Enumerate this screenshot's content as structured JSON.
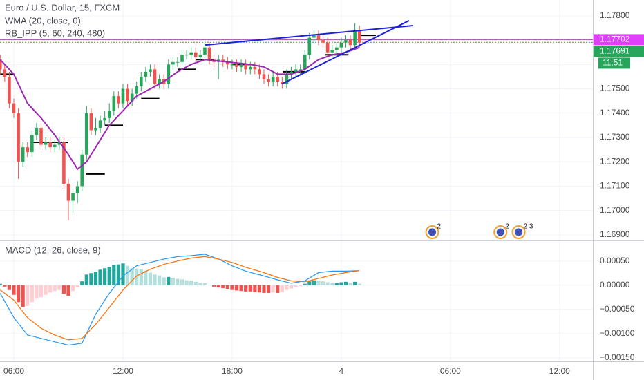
{
  "chart_data": [
    {
      "type": "candlestick",
      "title": "Euro / U.S. Dollar, 15, FXCM",
      "x": [
        5.25,
        5.5,
        5.75,
        6,
        6.25,
        6.5,
        6.75,
        7,
        7.25,
        7.5,
        7.75,
        8,
        8.25,
        8.5,
        8.75,
        9,
        9.25,
        9.5,
        9.75,
        10,
        10.25,
        10.5,
        10.75,
        11,
        11.25,
        11.5,
        11.75,
        12,
        12.25,
        12.5,
        12.75,
        13,
        13.25,
        13.5,
        13.75,
        14,
        14.25,
        14.5,
        14.75,
        15,
        15.25,
        15.5,
        15.75,
        16,
        16.25,
        16.5,
        16.75,
        17,
        17.25,
        17.5,
        17.75,
        18,
        18.25,
        18.5,
        18.75,
        19,
        19.25,
        19.5,
        19.75,
        20,
        20.25,
        20.5,
        20.75,
        21,
        21.25,
        21.5,
        21.75,
        22,
        22.25,
        22.5,
        22.75,
        23,
        23.25,
        23.5,
        23.75,
        24,
        24.25,
        24.5,
        24.75,
        25
      ],
      "open": [
        1.1762,
        1.1758,
        1.1755,
        1.1744,
        1.174,
        1.172,
        1.1726,
        1.1724,
        1.1731,
        1.1734,
        1.1727,
        1.1728,
        1.1726,
        1.1727,
        1.1728,
        1.1711,
        1.1704,
        1.1707,
        1.171,
        1.1723,
        1.174,
        1.1733,
        1.1734,
        1.1737,
        1.1738,
        1.1741,
        1.1747,
        1.1744,
        1.175,
        1.1745,
        1.1748,
        1.1751,
        1.1755,
        1.1757,
        1.1758,
        1.1752,
        1.1754,
        1.1752,
        1.176,
        1.1761,
        1.1761,
        1.1764,
        1.1764,
        1.1765,
        1.1763,
        1.1764,
        1.1767,
        1.1762,
        1.1761,
        1.1762,
        1.1761,
        1.176,
        1.176,
        1.1759,
        1.176,
        1.1758,
        1.1759,
        1.1758,
        1.1756,
        1.1754,
        1.1753,
        1.1755,
        1.1753,
        1.1752,
        1.1756,
        1.1757,
        1.1758,
        1.1758,
        1.1764,
        1.1771,
        1.1772,
        1.177,
        1.1769,
        1.1765,
        1.1766,
        1.1767,
        1.1769,
        1.177,
        1.1768,
        1.1774
      ],
      "high": [
        1.1764,
        1.176,
        1.1757,
        1.1746,
        1.1742,
        1.1728,
        1.1728,
        1.1733,
        1.1736,
        1.1736,
        1.173,
        1.173,
        1.1729,
        1.173,
        1.173,
        1.1713,
        1.1709,
        1.1712,
        1.1725,
        1.1743,
        1.1742,
        1.1738,
        1.1739,
        1.1741,
        1.1744,
        1.1749,
        1.1749,
        1.1752,
        1.1752,
        1.175,
        1.1753,
        1.1757,
        1.1759,
        1.176,
        1.176,
        1.1756,
        1.1756,
        1.1762,
        1.1763,
        1.1763,
        1.1766,
        1.1766,
        1.1767,
        1.1767,
        1.1766,
        1.1769,
        1.1769,
        1.1764,
        1.1764,
        1.1764,
        1.1763,
        1.1762,
        1.1762,
        1.1762,
        1.1762,
        1.1761,
        1.1761,
        1.176,
        1.1758,
        1.1756,
        1.1757,
        1.1757,
        1.1755,
        1.1758,
        1.1759,
        1.176,
        1.176,
        1.1766,
        1.1773,
        1.1774,
        1.1774,
        1.1772,
        1.1771,
        1.1768,
        1.1769,
        1.1771,
        1.1772,
        1.1772,
        1.1777,
        1.1776
      ],
      "low": [
        1.1756,
        1.1753,
        1.1742,
        1.1738,
        1.1713,
        1.1718,
        1.1722,
        1.1722,
        1.1729,
        1.1725,
        1.1725,
        1.1724,
        1.1724,
        1.1725,
        1.1709,
        1.1696,
        1.1699,
        1.1703,
        1.1708,
        1.1721,
        1.1731,
        1.1731,
        1.1732,
        1.1735,
        1.1736,
        1.1739,
        1.1742,
        1.1742,
        1.1743,
        1.1743,
        1.1746,
        1.1749,
        1.1753,
        1.1755,
        1.175,
        1.175,
        1.175,
        1.175,
        1.1758,
        1.1759,
        1.1759,
        1.1762,
        1.1762,
        1.1761,
        1.1761,
        1.1762,
        1.176,
        1.1759,
        1.1754,
        1.1759,
        1.1758,
        1.1758,
        1.1757,
        1.1757,
        1.1756,
        1.1756,
        1.1756,
        1.1754,
        1.1752,
        1.1751,
        1.1751,
        1.1751,
        1.175,
        1.175,
        1.1754,
        1.1755,
        1.1756,
        1.1756,
        1.1762,
        1.1769,
        1.1768,
        1.1767,
        1.1763,
        1.1763,
        1.1764,
        1.1765,
        1.1767,
        1.1766,
        1.1766,
        1.1767
      ],
      "close": [
        1.1758,
        1.1755,
        1.1744,
        1.174,
        1.172,
        1.1726,
        1.1724,
        1.1731,
        1.1734,
        1.1727,
        1.1728,
        1.1726,
        1.1727,
        1.1728,
        1.1711,
        1.1704,
        1.1707,
        1.171,
        1.1723,
        1.174,
        1.1733,
        1.1734,
        1.1737,
        1.1738,
        1.1741,
        1.1747,
        1.1744,
        1.175,
        1.1745,
        1.1748,
        1.1751,
        1.1755,
        1.1757,
        1.1758,
        1.1752,
        1.1754,
        1.1752,
        1.176,
        1.1761,
        1.1761,
        1.1764,
        1.1764,
        1.1765,
        1.1763,
        1.1764,
        1.1767,
        1.1762,
        1.1761,
        1.1762,
        1.1761,
        1.176,
        1.176,
        1.1759,
        1.176,
        1.1758,
        1.1759,
        1.1758,
        1.1756,
        1.1754,
        1.1753,
        1.1755,
        1.1753,
        1.1752,
        1.1756,
        1.1757,
        1.1758,
        1.1758,
        1.1764,
        1.1771,
        1.1772,
        1.177,
        1.1769,
        1.1765,
        1.1766,
        1.1767,
        1.1769,
        1.177,
        1.1768,
        1.1774,
        1.1769
      ],
      "up_color": "#26a65b",
      "down_color": "#ef5350",
      "series": [
        {
          "name": "WMA (20, close, 0)",
          "color": "#9c27b0",
          "x": [
            5.25,
            6,
            6.75,
            7.5,
            8.25,
            9,
            9.5,
            10,
            10.5,
            11.25,
            12,
            12.75,
            13.5,
            14.25,
            15,
            15.75,
            16.5,
            17.75,
            19,
            19.75,
            20.5,
            21.25,
            22,
            22.75,
            23.5,
            24.25,
            25
          ],
          "values": [
            1.1762,
            1.1756,
            1.1744,
            1.1738,
            1.1731,
            1.1723,
            1.1717,
            1.172,
            1.1726,
            1.1735,
            1.1741,
            1.1747,
            1.175,
            1.1753,
            1.1757,
            1.176,
            1.1762,
            1.1761,
            1.176,
            1.1759,
            1.1756,
            1.1756,
            1.1758,
            1.1762,
            1.1764,
            1.1765,
            1.1767
          ]
        }
      ],
      "pivot_label": "RB_IPP (5, 60, 240, 480)",
      "pivots": [
        {
          "x": [
            5.25,
            6.0
          ],
          "value": 1.1756
        },
        {
          "x": [
            6.9,
            9.0
          ],
          "value": 1.1728
        },
        {
          "x": [
            9.99,
            11.0
          ],
          "value": 1.1715
        },
        {
          "x": [
            11.0,
            12.0
          ],
          "value": 1.1735
        },
        {
          "x": [
            13.0,
            14.0
          ],
          "value": 1.1746
        },
        {
          "x": [
            15.0,
            16.0
          ],
          "value": 1.1758
        },
        {
          "x": [
            16.0,
            17.0
          ],
          "value": 1.1762
        },
        {
          "x": [
            18.0,
            19.0
          ],
          "value": 1.176
        },
        {
          "x": [
            20.8,
            22.0
          ],
          "value": 1.1757
        },
        {
          "x": [
            23.1,
            24.4
          ],
          "value": 1.1764
        },
        {
          "x": [
            25.0,
            25.9
          ],
          "value": 1.1772
        }
      ],
      "trendlines": [
        {
          "x": [
            16.52,
            27.95
          ],
          "values": [
            1.1768,
            1.1776
          ],
          "color": "#1e22d6"
        },
        {
          "x": [
            20.74,
            27.72
          ],
          "values": [
            1.1752,
            1.1778
          ],
          "color": "#1e22d6"
        }
      ],
      "hlines": [
        {
          "value": 1.17702,
          "color": "#e040fb",
          "dashed": false
        },
        {
          "value": 1.17691,
          "color": "#26a65b",
          "dashed": true
        }
      ],
      "countdown": "11:51",
      "events": [
        {
          "x": 29,
          "label": "2"
        },
        {
          "x": 32.75,
          "label": "2"
        },
        {
          "x": 33.75,
          "label": "2 3"
        }
      ],
      "xlim": [
        5.24,
        37.83
      ],
      "xticks": [
        {
          "value": 6,
          "label": "06:00"
        },
        {
          "value": 12,
          "label": "12:00"
        },
        {
          "value": 18,
          "label": "18:00"
        },
        {
          "value": 24,
          "label": "4"
        },
        {
          "value": 30,
          "label": "06:00"
        },
        {
          "value": 36,
          "label": "12:00"
        }
      ],
      "ylim": [
        1.16877,
        1.17865
      ],
      "yticks": [
        {
          "value": 1.178,
          "label": "1.17800"
        },
        {
          "value": 1.177,
          "label": "1.17700"
        },
        {
          "value": 1.176,
          "label": "1.17600"
        },
        {
          "value": 1.175,
          "label": "1.17500"
        },
        {
          "value": 1.174,
          "label": "1.17400"
        },
        {
          "value": 1.173,
          "label": "1.17300"
        },
        {
          "value": 1.172,
          "label": "1.17200"
        },
        {
          "value": 1.171,
          "label": "1.17100"
        },
        {
          "value": 1.17,
          "label": "1.17000"
        },
        {
          "value": 1.169,
          "label": "1.16900"
        }
      ],
      "grid": true
    },
    {
      "type": "macd",
      "title": "MACD (12, 26, close, 9)",
      "histogram": {
        "x": [
          5.25,
          5.5,
          5.75,
          6,
          6.25,
          6.5,
          6.75,
          7,
          7.25,
          7.5,
          7.75,
          8,
          8.25,
          8.5,
          8.75,
          9,
          9.25,
          9.5,
          9.75,
          10,
          10.25,
          10.5,
          10.75,
          11,
          11.25,
          11.5,
          11.75,
          12,
          12.25,
          12.5,
          12.75,
          13,
          13.25,
          13.5,
          13.75,
          14,
          14.25,
          14.5,
          14.75,
          15,
          15.25,
          15.5,
          15.75,
          16,
          16.25,
          16.5,
          16.75,
          17,
          17.25,
          17.5,
          17.75,
          18,
          18.25,
          18.5,
          18.75,
          19,
          19.25,
          19.5,
          19.75,
          20,
          20.25,
          20.5,
          20.75,
          21,
          21.25,
          21.5,
          21.75,
          22,
          22.25,
          22.5,
          22.75,
          23,
          23.25,
          23.5,
          23.75,
          24,
          24.25,
          24.5,
          24.75,
          25
        ],
        "values": [
          3e-05,
          -3e-05,
          -0.0001,
          -0.0002,
          -0.00035,
          -0.00045,
          -0.00043,
          -0.00035,
          -0.00028,
          -0.00025,
          -0.0002,
          -0.00015,
          -0.00012,
          -0.0001,
          -0.00018,
          -0.00022,
          -0.00012,
          -5e-05,
          8e-05,
          0.00022,
          0.00025,
          0.00028,
          0.00032,
          0.00035,
          0.00038,
          0.00042,
          0.00043,
          0.00045,
          0.0004,
          0.00035,
          0.00034,
          0.00033,
          0.0003,
          0.00026,
          0.00022,
          0.0002,
          0.00016,
          0.00017,
          0.00015,
          0.00013,
          0.00012,
          0.0001,
          9e-05,
          7e-05,
          5e-05,
          4e-05,
          1e-05,
          -3e-05,
          -5e-05,
          -6e-05,
          -8e-05,
          -0.0001,
          -0.00011,
          -0.00012,
          -0.00013,
          -0.00013,
          -0.00014,
          -0.00015,
          -0.00016,
          -0.00016,
          -0.00015,
          -0.00016,
          -0.00014,
          -0.0001,
          -7e-05,
          -4e-05,
          -2e-05,
          3e-05,
          8e-05,
          0.0001,
          9e-05,
          8e-05,
          6e-05,
          5e-05,
          5e-05,
          6e-05,
          7e-05,
          5e-05,
          7e-05,
          3e-05
        ],
        "colors": {
          "grow_above": "#26a69a",
          "fall_above": "#b2dfdb",
          "grow_below": "#ffcdd2",
          "fall_below": "#ef5350"
        }
      },
      "lines": [
        {
          "color": "#2196f3",
          "x": [
            5.25,
            6,
            6.75,
            7.5,
            8.25,
            9,
            9.75,
            10.5,
            11.25,
            12,
            12.75,
            13.5,
            14.25,
            15,
            15.75,
            16.5,
            17.25,
            18,
            18.75,
            19.75,
            20.5,
            21.25,
            22,
            22.75,
            23.5,
            24.25,
            25
          ],
          "values": [
            -0.00017,
            -0.00067,
            -0.00103,
            -0.0011,
            -0.00117,
            -0.00124,
            -0.0012,
            -0.0006,
            -0.00017,
            0.00019,
            0.0004,
            0.00047,
            0.00054,
            0.00059,
            0.00061,
            0.00064,
            0.00054,
            0.0004,
            0.00029,
            0.00019,
            0.00011,
            4e-05,
            9e-05,
            0.00026,
            0.00029,
            0.00029,
            0.0003
          ]
        },
        {
          "color": "#ff6d00",
          "x": [
            5.25,
            6,
            6.75,
            7.5,
            8.25,
            9,
            9.75,
            10.5,
            11.25,
            12,
            12.75,
            13.5,
            14.25,
            15,
            15.75,
            16.5,
            17.25,
            18,
            18.75,
            19.75,
            20.5,
            21.25,
            22,
            22.75,
            23.5,
            24.25,
            25
          ],
          "values": [
            -0.0001,
            -0.00031,
            -0.00067,
            -0.00089,
            -0.00103,
            -0.00113,
            -0.0011,
            -0.00081,
            -0.00046,
            -0.0001,
            0.00019,
            0.00033,
            0.00043,
            0.0005,
            0.00056,
            0.00059,
            0.00054,
            0.00047,
            0.00037,
            0.00026,
            0.00016,
            9e-05,
            7e-05,
            0.00014,
            0.00021,
            0.00026,
            0.0003
          ]
        }
      ],
      "ylim": [
        -0.00156,
        0.00091
      ],
      "yticks": [
        {
          "value": 0.0005,
          "label": "0.00050"
        },
        {
          "value": 0,
          "label": "0.00000"
        },
        {
          "value": -0.0005,
          "label": "−0.00050"
        },
        {
          "value": -0.001,
          "label": "−0.00100"
        },
        {
          "value": -0.0015,
          "label": "−0.00150"
        }
      ],
      "grid": true
    }
  ]
}
